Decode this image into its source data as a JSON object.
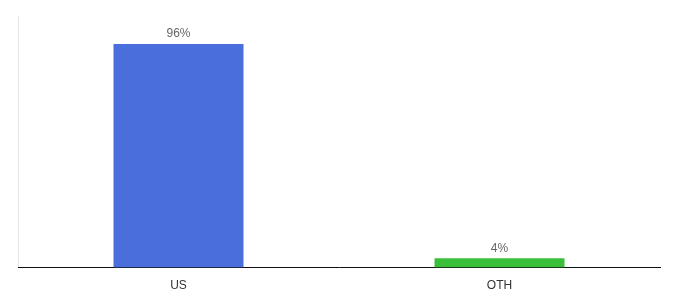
{
  "chart_data": {
    "type": "bar",
    "categories": [
      "US",
      "OTH"
    ],
    "values": [
      96,
      4
    ],
    "value_labels": [
      "96%",
      "4%"
    ],
    "colors": [
      "#4a6edb",
      "#3abf3a"
    ],
    "data_labels": true,
    "ylim": [
      0,
      108
    ],
    "yticks": [],
    "tick_labels": "x",
    "grid": false
  }
}
